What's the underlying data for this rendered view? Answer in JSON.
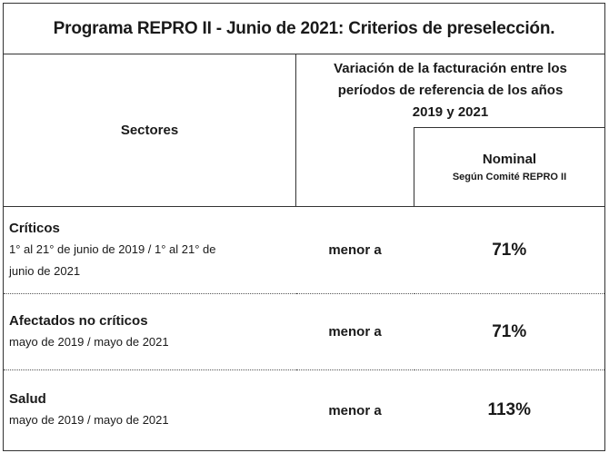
{
  "title": "Programa REPRO II - Junio de 2021: Criterios de preselección.",
  "header": {
    "sectores_label": "Sectores",
    "variation_line1": "Variación de la facturación entre los",
    "variation_line2": "períodos de referencia de los años",
    "variation_line3": "2019 y 2021",
    "nominal_label": "Nominal",
    "nominal_sub": "Según Comité REPRO II"
  },
  "rows": [
    {
      "name": "Críticos",
      "period_line1": "1° al 21° de junio de 2019 / 1° al 21° de",
      "period_line2": "junio de 2021",
      "condition": "menor a",
      "value": "71%"
    },
    {
      "name": "Afectados no críticos",
      "period_line1": "mayo de 2019 / mayo de 2021",
      "period_line2": "",
      "condition": "menor a",
      "value": "71%"
    },
    {
      "name": "Salud",
      "period_line1": "mayo de 2019 / mayo de 2021",
      "period_line2": "",
      "condition": "menor a",
      "value": "113%"
    }
  ]
}
